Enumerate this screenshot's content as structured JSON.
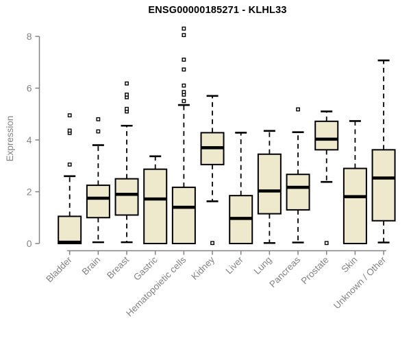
{
  "chart_data": {
    "type": "boxplot",
    "title": "ENSG00000185271 - KLHL33",
    "ylabel": "Expression",
    "xlabel": "",
    "ylim": [
      0,
      8
    ],
    "yticks": [
      0,
      2,
      4,
      6,
      8
    ],
    "grid": false,
    "legend": null,
    "colors": {
      "box_fill": "#EEE8CD",
      "box_border": "#000000",
      "median": "#000000",
      "whisker": "#000000",
      "outlier_fill": "#ffffff",
      "axis": "#828282",
      "tick_label": "#828282",
      "title": "#000000"
    },
    "categories": [
      "Bladder",
      "Brain",
      "Breast",
      "Gastric",
      "Hematopoietic cells",
      "Kidney",
      "Liver",
      "Lung",
      "Pancreas",
      "Prostate",
      "Skin",
      "Unknown / Other"
    ],
    "boxes": [
      {
        "category": "Bladder",
        "whisker_low": null,
        "q1": 0,
        "median": 0.05,
        "q3": 1.05,
        "whisker_high": 2.6,
        "outliers": [
          3.05,
          4.27,
          4.36,
          4.95
        ]
      },
      {
        "category": "Brain",
        "whisker_low": 0.05,
        "q1": 1.0,
        "median": 1.75,
        "q3": 2.25,
        "whisker_high": 3.8,
        "outliers": [
          4.33,
          4.8
        ]
      },
      {
        "category": "Breast",
        "whisker_low": 0.05,
        "q1": 1.1,
        "median": 1.9,
        "q3": 2.5,
        "whisker_high": 4.55,
        "outliers": [
          5.1,
          5.2,
          5.65,
          5.75,
          6.18
        ]
      },
      {
        "category": "Gastric",
        "whisker_low": null,
        "q1": 0,
        "median": 1.72,
        "q3": 2.87,
        "whisker_high": 3.37,
        "outliers": []
      },
      {
        "category": "Hematopoietic cells",
        "whisker_low": null,
        "q1": 0,
        "median": 1.4,
        "q3": 2.17,
        "whisker_high": 5.35,
        "outliers": [
          5.5,
          5.75,
          5.85,
          6.1,
          6.72,
          7.1,
          8.05,
          8.3
        ]
      },
      {
        "category": "Kidney",
        "whisker_low": 1.63,
        "q1": 3.05,
        "median": 3.7,
        "q3": 4.28,
        "whisker_high": 5.7,
        "outliers": [
          0.02
        ]
      },
      {
        "category": "Liver",
        "whisker_low": null,
        "q1": 0,
        "median": 0.97,
        "q3": 1.85,
        "whisker_high": 4.28,
        "outliers": []
      },
      {
        "category": "Lung",
        "whisker_low": 0.02,
        "q1": 1.15,
        "median": 2.03,
        "q3": 3.45,
        "whisker_high": 4.35,
        "outliers": []
      },
      {
        "category": "Pancreas",
        "whisker_low": 0.04,
        "q1": 1.3,
        "median": 2.17,
        "q3": 2.67,
        "whisker_high": 4.3,
        "outliers": [
          5.18
        ]
      },
      {
        "category": "Prostate",
        "whisker_low": 2.38,
        "q1": 3.62,
        "median": 4.03,
        "q3": 4.72,
        "whisker_high": 5.1,
        "outliers": [
          0.02
        ]
      },
      {
        "category": "Skin",
        "whisker_low": null,
        "q1": 0,
        "median": 1.81,
        "q3": 2.9,
        "whisker_high": 4.73,
        "outliers": []
      },
      {
        "category": "Unknown / Other",
        "whisker_low": 0.04,
        "q1": 0.88,
        "median": 2.53,
        "q3": 3.62,
        "whisker_high": 7.07,
        "outliers": []
      }
    ]
  }
}
